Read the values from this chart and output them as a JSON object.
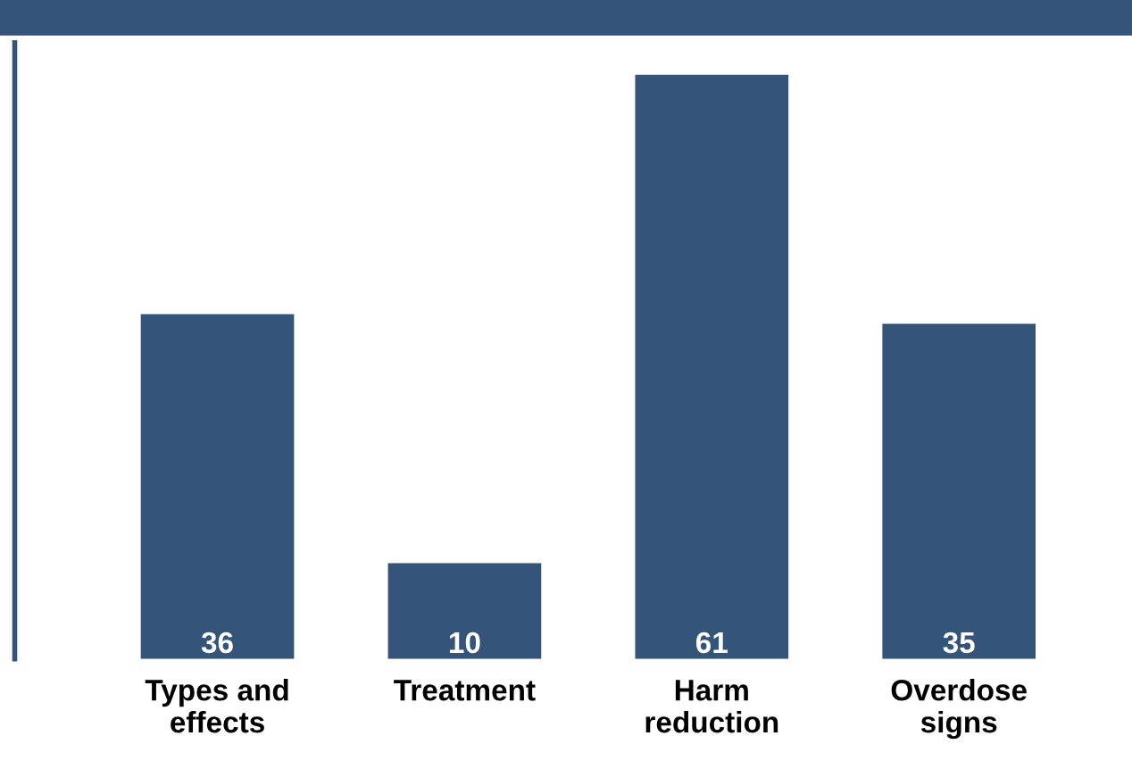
{
  "chart_data": {
    "type": "bar",
    "categories": [
      "Types and\neffects",
      "Treatment",
      "Harm\nreduction",
      "Overdose\nsigns"
    ],
    "values": [
      36,
      10,
      61,
      35
    ],
    "color": "#34547a",
    "data_labels": true,
    "grid": false,
    "legend": false
  }
}
